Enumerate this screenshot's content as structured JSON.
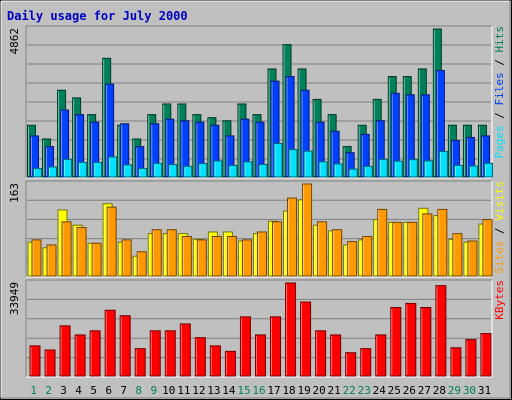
{
  "chart_data": {
    "type": "bar",
    "title": "Daily usage for July 2000",
    "days": [
      "1",
      "2",
      "3",
      "4",
      "5",
      "6",
      "7",
      "8",
      "9",
      "10",
      "11",
      "12",
      "13",
      "14",
      "15",
      "16",
      "17",
      "18",
      "19",
      "20",
      "21",
      "22",
      "23",
      "24",
      "25",
      "26",
      "27",
      "28",
      "29",
      "30",
      "31"
    ],
    "weekend_days": [
      "1",
      "2",
      "8",
      "9",
      "15",
      "16",
      "22",
      "23",
      "29",
      "30"
    ],
    "panels": [
      {
        "id": "hits",
        "ymax": 4862,
        "tick_label": "4862",
        "side_label": [
          "Pages",
          "Files",
          "Hits"
        ],
        "series": [
          {
            "name": "Hits",
            "color": "#00805a",
            "values": [
              1700,
              1250,
              2850,
              2600,
              2050,
              3900,
              1700,
              1250,
              2050,
              2400,
              2400,
              2050,
              1950,
              1850,
              2400,
              2050,
              3550,
              4350,
              3550,
              2550,
              2050,
              1000,
              1700,
              2550,
              3300,
              3300,
              3550,
              4862,
              1700,
              1700,
              1700
            ]
          },
          {
            "name": "Files",
            "color": "#0040ff",
            "values": [
              1350,
              1000,
              2200,
              2050,
              1800,
              3050,
              1750,
              1000,
              1750,
              1900,
              1850,
              1800,
              1700,
              1350,
              1900,
              1800,
              3150,
              3300,
              2850,
              1800,
              1500,
              800,
              1400,
              1850,
              2750,
              2700,
              2700,
              3500,
              1200,
              1300,
              1350
            ]
          },
          {
            "name": "Pages",
            "color": "#00e0ff",
            "values": [
              280,
              330,
              580,
              480,
              480,
              660,
              400,
              280,
              450,
              410,
              350,
              440,
              530,
              380,
              500,
              410,
              1100,
              900,
              850,
              500,
              430,
              260,
              350,
              580,
              520,
              570,
              530,
              840,
              380,
              360,
              450
            ]
          }
        ]
      },
      {
        "id": "visits",
        "ymax": 163,
        "tick_label": "163",
        "side_label": [
          "Sites",
          "Visits"
        ],
        "series": [
          {
            "name": "Visits",
            "color": "#ffff00",
            "values": [
              60,
              50,
              117,
              90,
              58,
              128,
              60,
              35,
              75,
              75,
              75,
              65,
              78,
              78,
              62,
              75,
              97,
              115,
              135,
              90,
              80,
              55,
              64,
              100,
              95,
              95,
              120,
              107,
              65,
              60,
              92
            ]
          },
          {
            "name": "Sites",
            "color": "#ff9900",
            "values": [
              64,
              55,
              96,
              86,
              58,
              122,
              64,
              43,
              82,
              82,
              70,
              64,
              70,
              70,
              64,
              78,
              96,
              138,
              163,
              96,
              82,
              61,
              70,
              118,
              95,
              95,
              110,
              118,
              75,
              62,
              100
            ]
          }
        ]
      },
      {
        "id": "kbytes",
        "ymax": 33949,
        "tick_label": "33949",
        "side_label": [
          "KBytes"
        ],
        "series": [
          {
            "name": "KBytes",
            "color": "#ff0000",
            "values": [
              11000,
              9500,
              18300,
              15000,
              16500,
              24000,
              22000,
              10000,
              16500,
              16500,
              19000,
              14000,
              11000,
              9000,
              21600,
              15000,
              21600,
              33949,
              27000,
              16500,
              15000,
              8500,
              10000,
              15000,
              25000,
              26500,
              25000,
              33000,
              10300,
              13300,
              15500
            ]
          }
        ]
      }
    ]
  }
}
